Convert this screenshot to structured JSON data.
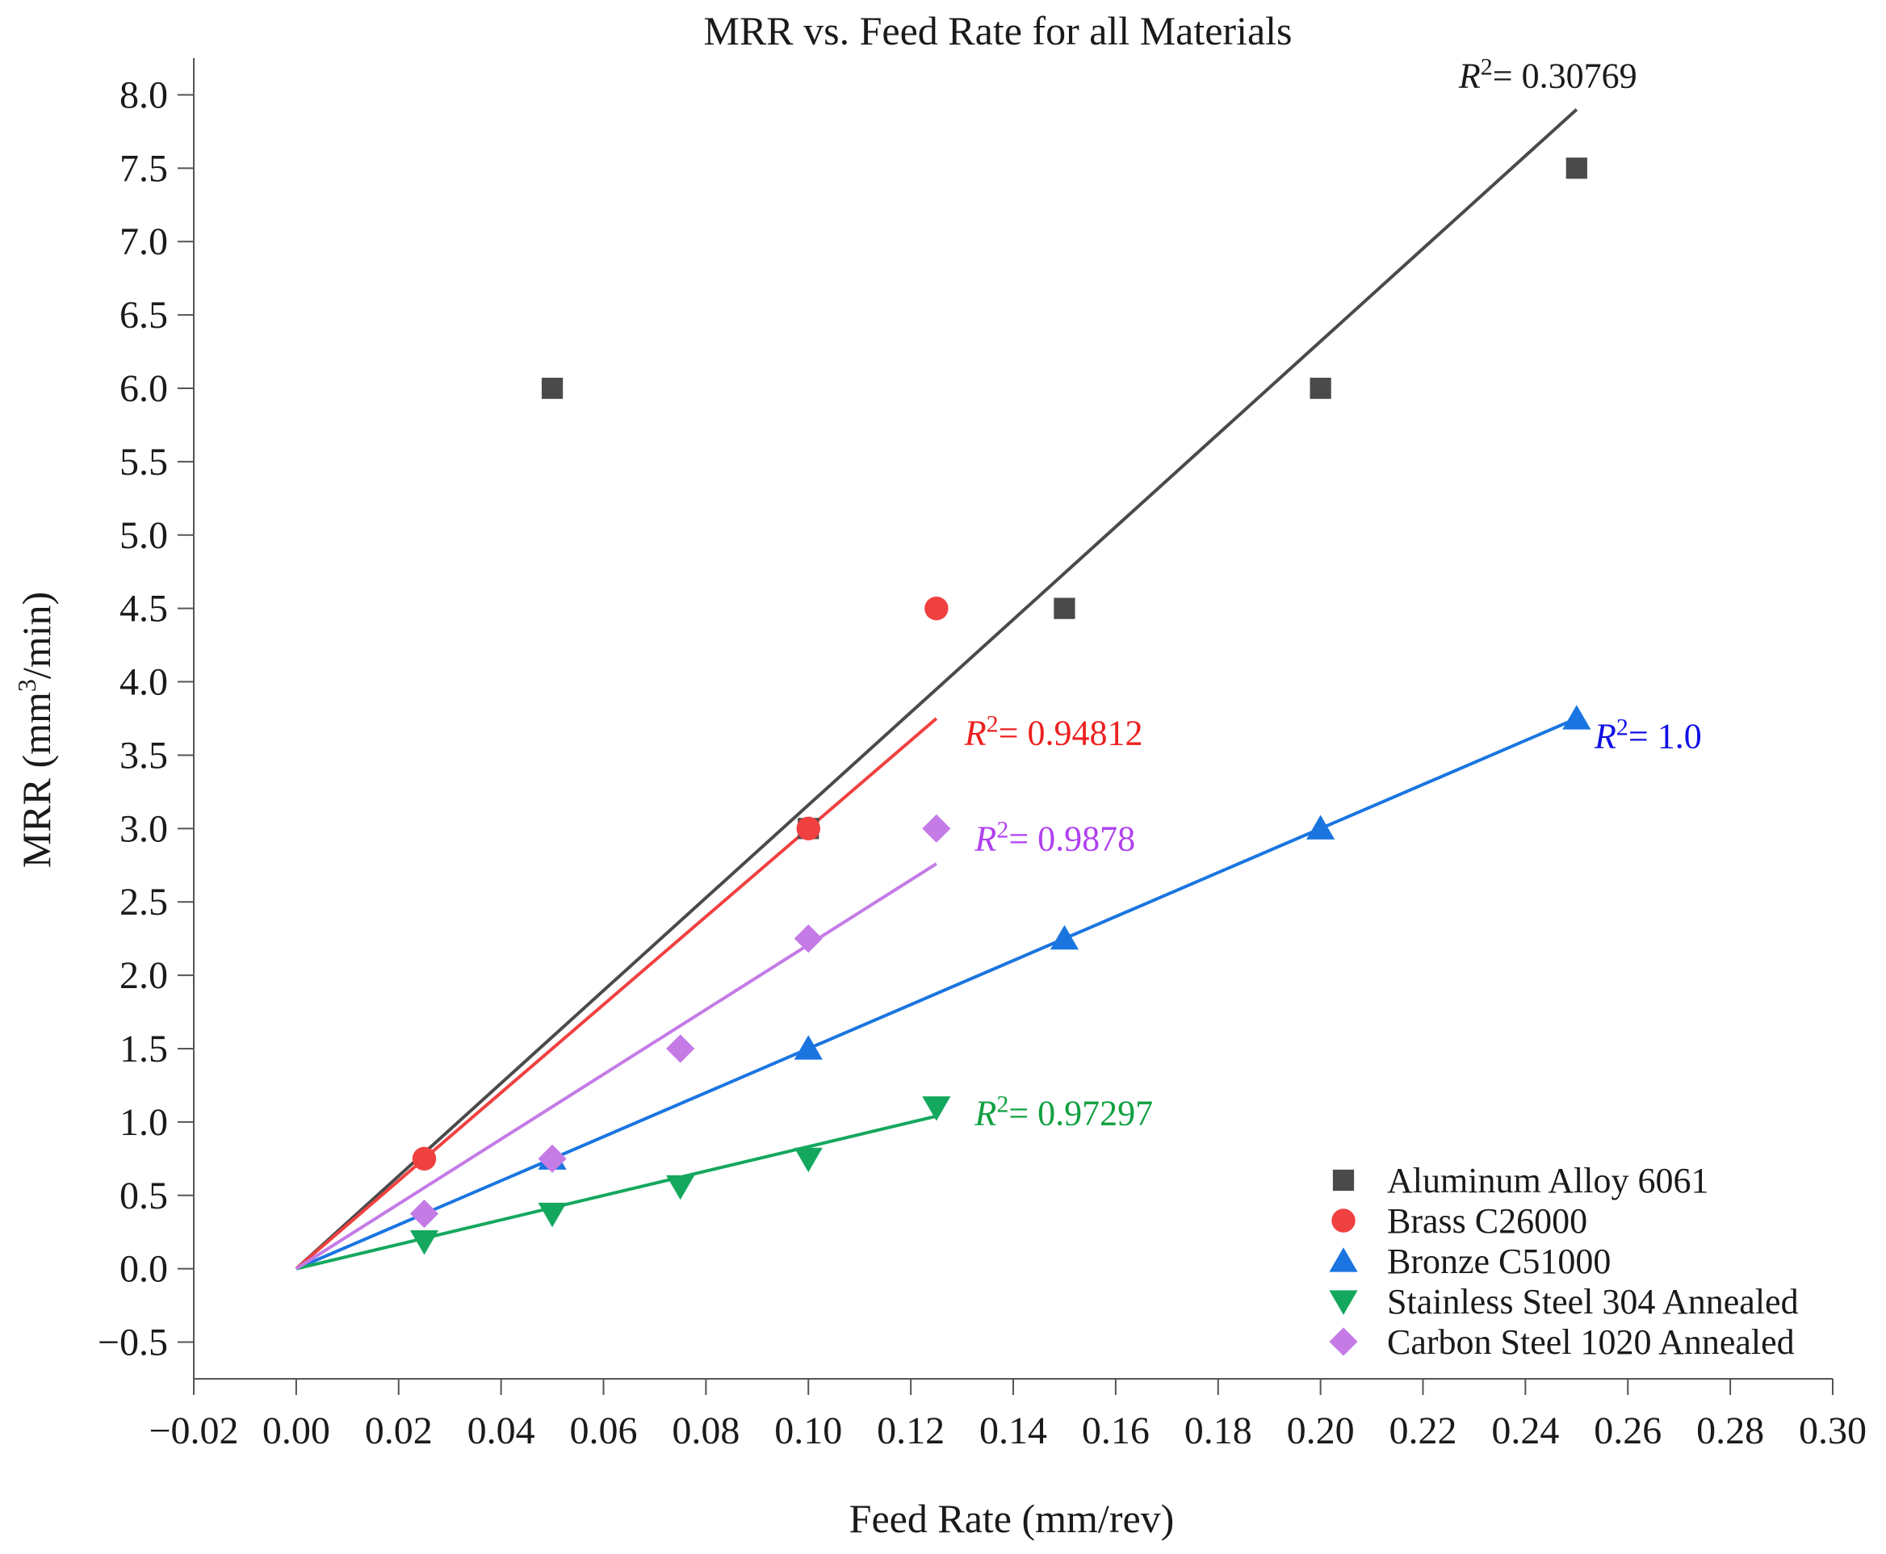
{
  "chart_data": {
    "type": "scatter",
    "title": "MRR vs. Feed Rate for all Materials",
    "xlabel": "Feed Rate (mm/rev)",
    "ylabel_prefix": "MRR (mm",
    "ylabel_sup": "3",
    "ylabel_suffix": "/min)",
    "xlim": [
      -0.02,
      0.3
    ],
    "ylim": [
      -0.75,
      8.25
    ],
    "x_ticks": [
      "−0.02",
      "0.00",
      "0.02",
      "0.04",
      "0.06",
      "0.08",
      "0.10",
      "0.12",
      "0.14",
      "0.16",
      "0.18",
      "0.20",
      "0.22",
      "0.24",
      "0.26",
      "0.28",
      "0.30"
    ],
    "x_tick_values": [
      -0.02,
      0.0,
      0.02,
      0.04,
      0.06,
      0.08,
      0.1,
      0.12,
      0.14,
      0.16,
      0.18,
      0.2,
      0.22,
      0.24,
      0.26,
      0.28,
      0.3
    ],
    "y_ticks": [
      "−0.5",
      "0.0",
      "0.5",
      "1.0",
      "1.5",
      "2.0",
      "2.5",
      "3.0",
      "3.5",
      "4.0",
      "4.5",
      "5.0",
      "5.5",
      "6.0",
      "6.5",
      "7.0",
      "7.5",
      "8.0"
    ],
    "y_tick_values": [
      -0.5,
      0.0,
      0.5,
      1.0,
      1.5,
      2.0,
      2.5,
      3.0,
      3.5,
      4.0,
      4.5,
      5.0,
      5.5,
      6.0,
      6.5,
      7.0,
      7.5,
      8.0
    ],
    "grid": false,
    "legend_position": "bottom-right",
    "series": [
      {
        "name": "Aluminum Alloy 6061",
        "marker": "square",
        "color": "#4a4a4a",
        "x": [
          0.05,
          0.1,
          0.15,
          0.2,
          0.25
        ],
        "y": [
          6.0,
          3.0,
          4.5,
          6.0,
          7.5
        ],
        "trend": {
          "x": [
            0.0,
            0.25
          ],
          "y": [
            0.0,
            7.9
          ]
        },
        "r2_label": "= 0.30769",
        "r2_anchor": {
          "x": 0.227,
          "y": 8.05
        }
      },
      {
        "name": "Brass C26000",
        "marker": "circle",
        "color": "#f04040",
        "x": [
          0.025,
          0.1,
          0.125
        ],
        "y": [
          0.75,
          3.0,
          4.5
        ],
        "trend": {
          "x": [
            0.0,
            0.125
          ],
          "y": [
            0.0,
            3.75
          ]
        },
        "r2_label": "= 0.94812",
        "r2_anchor": {
          "x": 0.1305,
          "y": 3.57
        }
      },
      {
        "name": "Bronze C51000",
        "marker": "triangle-up",
        "color": "#1a75e0",
        "x": [
          0.05,
          0.1,
          0.15,
          0.2,
          0.25
        ],
        "y": [
          0.75,
          1.5,
          2.25,
          3.0,
          3.75
        ],
        "trend": {
          "x": [
            0.0,
            0.25
          ],
          "y": [
            0.0,
            3.75
          ]
        },
        "r2_label": "= 1.0",
        "r2_anchor": {
          "x": 0.2535,
          "y": 3.55
        }
      },
      {
        "name": "Stainless Steel 304 Annealed",
        "marker": "triangle-down",
        "color": "#14a85e",
        "x": [
          0.025,
          0.05,
          0.075,
          0.1,
          0.125
        ],
        "y": [
          0.1875,
          0.375,
          0.5625,
          0.75,
          1.1
        ],
        "trend": {
          "x": [
            0.0,
            0.125
          ],
          "y": [
            0.0,
            1.04
          ]
        },
        "r2_label": "= 0.97297",
        "r2_anchor": {
          "x": 0.1325,
          "y": 0.98
        }
      },
      {
        "name": "Carbon Steel 1020 Annealed",
        "marker": "diamond",
        "color": "#c47be6",
        "x": [
          0.025,
          0.05,
          0.075,
          0.1,
          0.125
        ],
        "y": [
          0.375,
          0.75,
          1.5,
          2.25,
          3.0
        ],
        "trend": {
          "x": [
            0.0,
            0.125
          ],
          "y": [
            0.0,
            2.76
          ]
        },
        "r2_label": "= 0.9878",
        "r2_anchor": {
          "x": 0.1325,
          "y": 2.85
        },
        "r2_color": "#b040f0"
      }
    ],
    "r2_symbol": "R",
    "r2_sup": "2",
    "r2_colors": {
      "Aluminum Alloy 6061": "#1a1a1a",
      "Brass C26000": "#ee2020",
      "Bronze C51000": "#1010e6",
      "Stainless Steel 304 Annealed": "#10a040",
      "Carbon Steel 1020 Annealed": "#b040f0"
    }
  }
}
